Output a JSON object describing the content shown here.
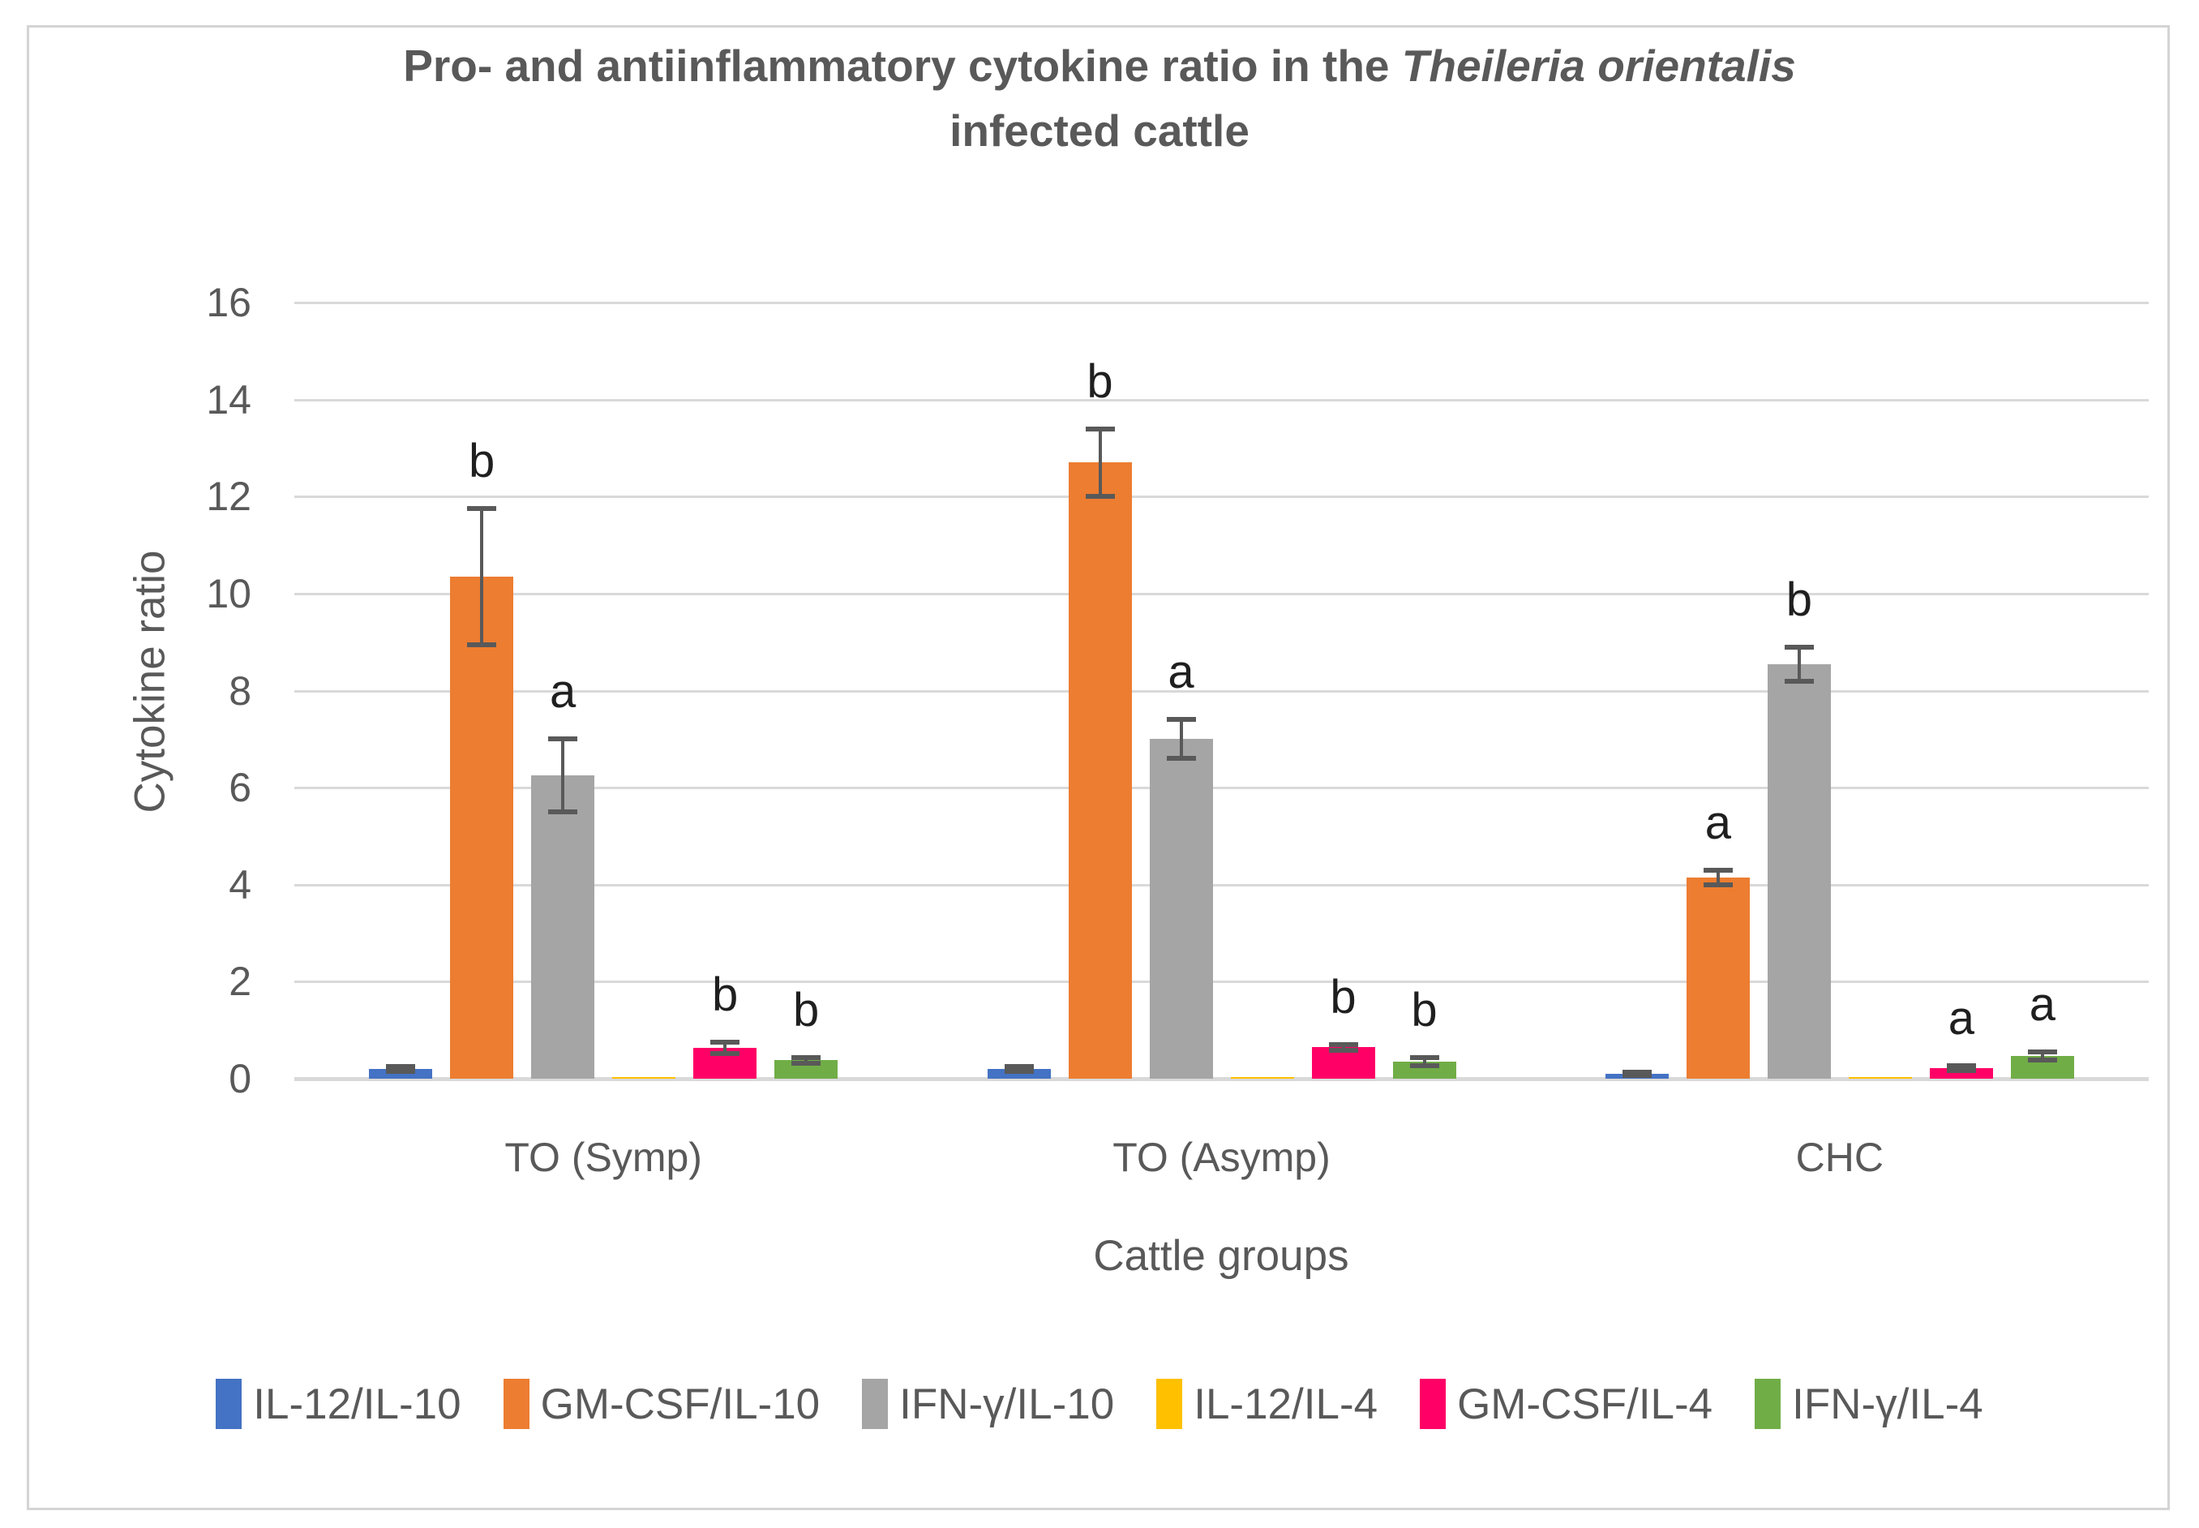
{
  "figure": {
    "background": "#FFFFFF",
    "border_color": "#D4D4D4",
    "text_color": "#595959",
    "grid_color": "#D9D9D9",
    "error_bar_color": "#595959",
    "letter_color": "#1F1F1F"
  },
  "chart_data": {
    "type": "bar",
    "title": {
      "prefix": "Pro- and antiinflammatory cytokine ratio in the ",
      "italic": "Theileria orientalis",
      "line2": "infected cattle"
    },
    "xlabel": "Cattle groups",
    "ylabel": "Cytokine ratio",
    "ylim": [
      0,
      16
    ],
    "yticks": [
      0,
      2,
      4,
      6,
      8,
      10,
      12,
      14,
      16
    ],
    "grid": true,
    "legend_position": "bottom",
    "categories": [
      "TO (Symp)",
      "TO (Asymp)",
      "CHC"
    ],
    "series": [
      {
        "name": "IL-12/IL-10",
        "color": "#4472C4",
        "values": [
          0.2,
          0.2,
          0.1
        ],
        "errors": [
          0.05,
          0.05,
          0.04
        ],
        "letters": [
          "",
          "",
          ""
        ]
      },
      {
        "name": "GM-CSF/IL-10",
        "color": "#ED7D31",
        "values": [
          10.35,
          12.7,
          4.15
        ],
        "errors": [
          1.4,
          0.7,
          0.15
        ],
        "letters": [
          "b",
          "b",
          "a"
        ]
      },
      {
        "name": "IFN-γ/IL-10",
        "color": "#A5A5A5",
        "values": [
          6.25,
          7.0,
          8.55
        ],
        "errors": [
          0.75,
          0.4,
          0.35
        ],
        "letters": [
          "a",
          "a",
          "b"
        ]
      },
      {
        "name": "IL-12/IL-4",
        "color": "#FFC000",
        "values": [
          0.02,
          0.02,
          0.01
        ],
        "errors": [
          0,
          0,
          0
        ],
        "letters": [
          "",
          "",
          ""
        ]
      },
      {
        "name": "GM-CSF/IL-4",
        "color": "#FF0066",
        "values": [
          0.63,
          0.65,
          0.22
        ],
        "errors": [
          0.12,
          0.06,
          0.05
        ],
        "letters": [
          "b",
          "b",
          "a"
        ]
      },
      {
        "name": "IFN-γ/IL-4",
        "color": "#70AD47",
        "values": [
          0.38,
          0.35,
          0.47
        ],
        "errors": [
          0.06,
          0.08,
          0.08
        ],
        "letters": [
          "b",
          "b",
          "a"
        ]
      }
    ]
  }
}
